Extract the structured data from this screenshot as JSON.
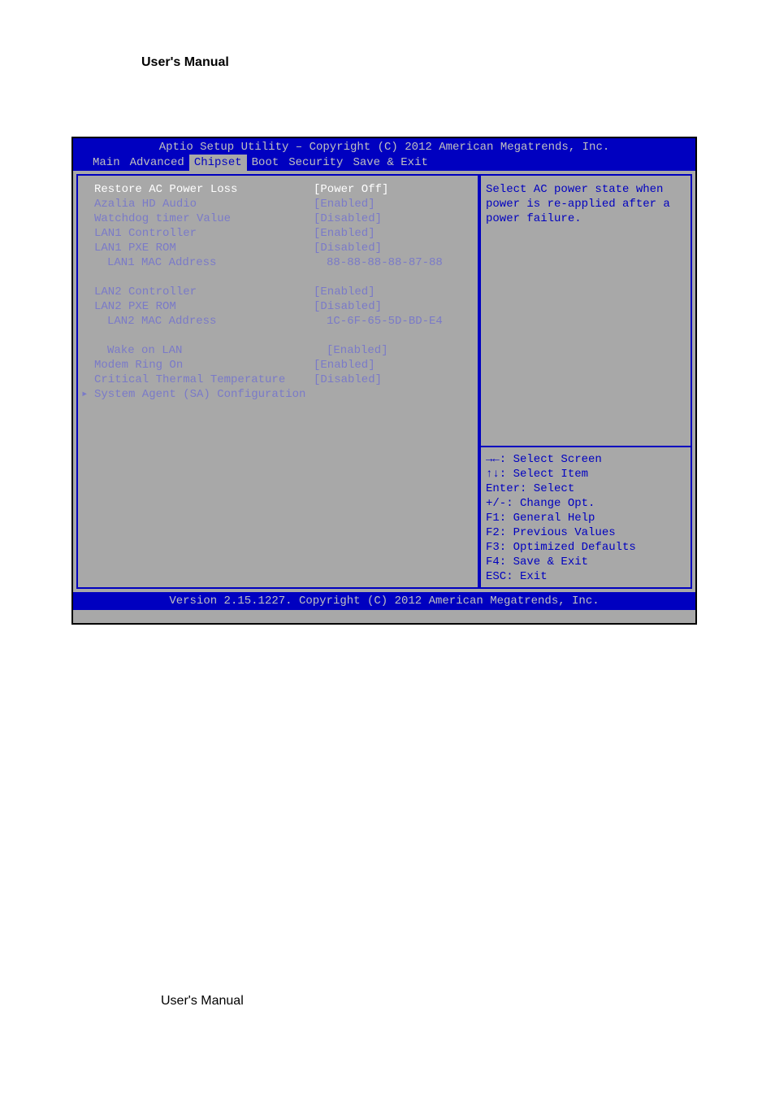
{
  "page": {
    "header": "User's Manual",
    "footer": "User's Manual"
  },
  "bios": {
    "title": "Aptio Setup Utility – Copyright (C) 2012 American Megatrends, Inc.",
    "footer": "Version 2.15.1227. Copyright (C) 2012 American Megatrends, Inc.",
    "menu": {
      "items": [
        "Main",
        "Advanced",
        "Chipset",
        "Boot",
        "Security",
        "Save & Exit"
      ],
      "active_index": 2
    },
    "rows": [
      {
        "label": "Restore AC Power Loss",
        "value": "[Power Off]",
        "selected": true
      },
      {
        "label": "Azalia HD Audio",
        "value": "[Enabled]"
      },
      {
        "label": "Watchdog timer Value",
        "value": "[Disabled]"
      },
      {
        "label": "LAN1 Controller",
        "value": "[Enabled]"
      },
      {
        "label": "LAN1 PXE ROM",
        "value": "[Disabled]"
      },
      {
        "label": "LAN1 MAC Address",
        "value": "88-88-88-88-87-88",
        "indent": true
      },
      {
        "blank": true
      },
      {
        "label": "LAN2 Controller",
        "value": "[Enabled]"
      },
      {
        "label": "LAN2 PXE ROM",
        "value": "[Disabled]"
      },
      {
        "label": "LAN2 MAC Address",
        "value": "1C-6F-65-5D-BD-E4",
        "indent": true
      },
      {
        "blank": true
      },
      {
        "label": "Wake on LAN",
        "value": "[Enabled]",
        "indent": true
      },
      {
        "label": "Modem Ring On",
        "value": "[Enabled]"
      },
      {
        "label": "Critical Thermal Temperature",
        "value": "[Disabled]"
      },
      {
        "label": "System Agent (SA) Configuration",
        "value": "",
        "submenu": true
      }
    ],
    "help": {
      "lines": [
        "Select AC power state when",
        "power is re-applied after a",
        "power failure."
      ]
    },
    "keys": [
      "→←: Select Screen",
      "↑↓: Select Item",
      "Enter: Select",
      "+/-: Change Opt.",
      "F1: General Help",
      "F2: Previous Values",
      "F3: Optimized Defaults",
      "F4: Save & Exit",
      "ESC: Exit"
    ],
    "colors": {
      "bar_bg": "#0000c0",
      "bar_fg": "#c0c0c0",
      "body_bg": "#a8a8a8",
      "text_dim": "#7a7ac8",
      "text_bright": "#ffffff",
      "side_text": "#0000c0",
      "border": "#0000c0"
    }
  }
}
